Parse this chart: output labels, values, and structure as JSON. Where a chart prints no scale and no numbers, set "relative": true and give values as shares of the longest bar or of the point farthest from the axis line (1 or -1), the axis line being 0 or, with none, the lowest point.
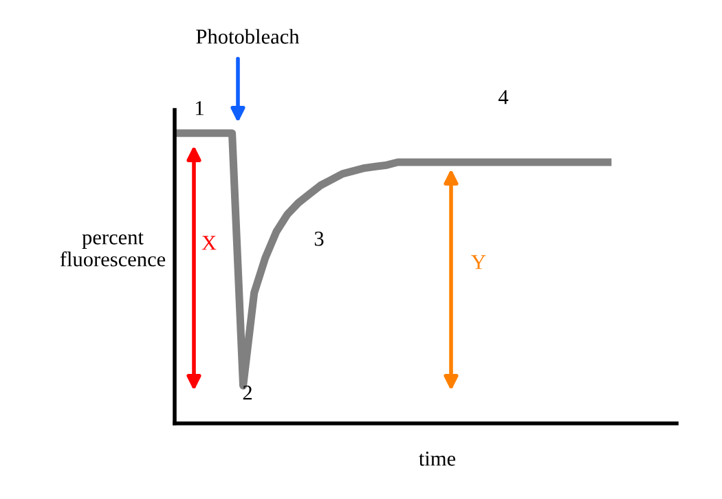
{
  "chart_data": {
    "type": "line",
    "relative": true,
    "xlabel": "time",
    "ylabel": "percent\nfluorescence",
    "categories": [
      null,
      null,
      null,
      null,
      null,
      null,
      null,
      null,
      null,
      null,
      null,
      null,
      null,
      null,
      null,
      null,
      null,
      null,
      null,
      null,
      null,
      null,
      null,
      null,
      null,
      null,
      null,
      null,
      null,
      null,
      null,
      null,
      null,
      null,
      null,
      null,
      null,
      null,
      null,
      null
    ],
    "series": [
      {
        "color": "#808080",
        "values": [
          1,
          1,
          1,
          1,
          1,
          1,
          0.13,
          0.45,
          0.57,
          0.66,
          0.72,
          0.76,
          0.79,
          0.82,
          0.84,
          0.86,
          0.87,
          0.88,
          0.885,
          0.89,
          0.9,
          0.9,
          0.9,
          0.9,
          0.9,
          0.9,
          0.9,
          0.9,
          0.9,
          0.9,
          0.9,
          0.9,
          0.9,
          0.9,
          0.9,
          0.9,
          0.9,
          0.9,
          0.9,
          0.9
        ]
      }
    ],
    "annotations": [
      "Photobleach",
      "1",
      "2",
      "3",
      "4",
      "X",
      "Y"
    ],
    "grid": false
  }
}
